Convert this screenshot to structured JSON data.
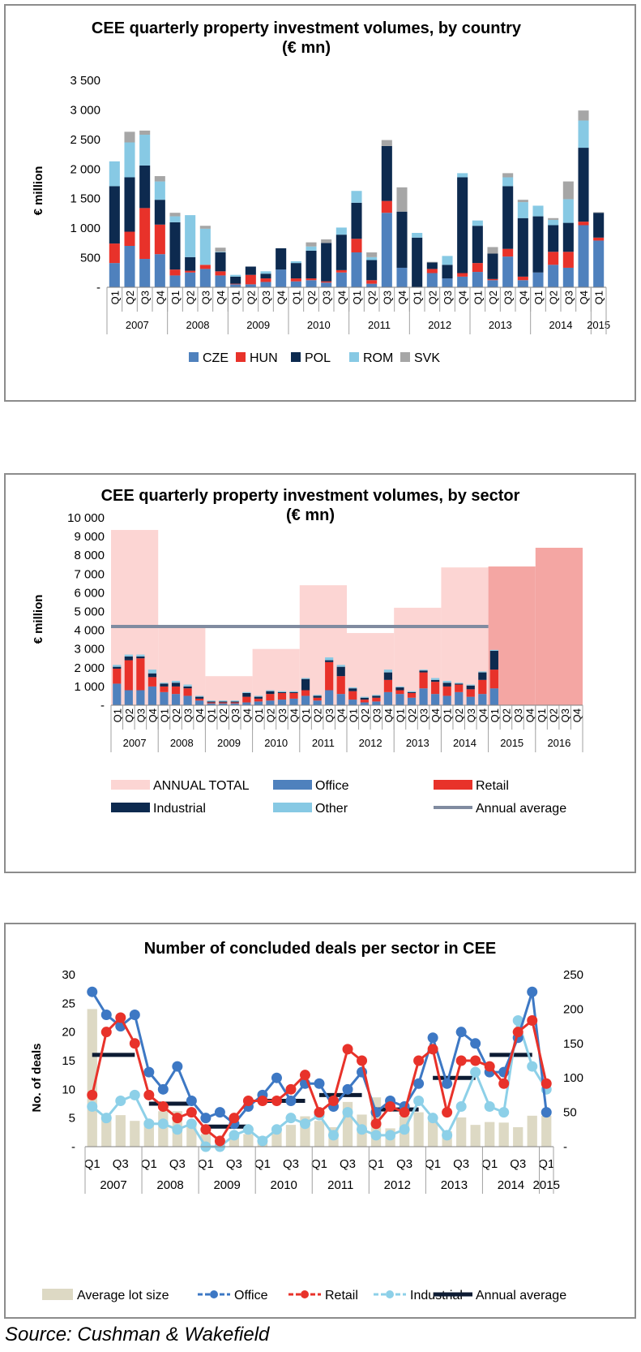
{
  "chart_data": [
    {
      "type": "bar",
      "stacked": true,
      "title": "CEE quarterly property investment volumes, by country",
      "subtitle": "(€ mn)",
      "ylabel": "€ million",
      "ylim": [
        0,
        3500
      ],
      "yticks": [
        "-",
        "500",
        "1 000",
        "1 500",
        "2 000",
        "2 500",
        "3 000",
        "3 500"
      ],
      "quarter_labels": [
        "Q1",
        "Q2",
        "Q3",
        "Q4",
        "Q1",
        "Q2",
        "Q3",
        "Q4",
        "Q1",
        "Q2",
        "Q3",
        "Q4",
        "Q1",
        "Q2",
        "Q3",
        "Q4",
        "Q1",
        "Q2",
        "Q3",
        "Q4",
        "Q1",
        "Q2",
        "Q3",
        "Q4",
        "Q1",
        "Q2",
        "Q3",
        "Q4",
        "Q1",
        "Q2",
        "Q3",
        "Q4",
        "Q1"
      ],
      "years": [
        "2007",
        "2008",
        "2009",
        "2010",
        "2011",
        "2012",
        "2013",
        "2014",
        "2015"
      ],
      "legend_position": "bottom",
      "series": [
        {
          "name": "CZE",
          "color": "#4f81bd",
          "values": [
            410,
            700,
            480,
            560,
            200,
            250,
            310,
            200,
            50,
            50,
            90,
            300,
            100,
            120,
            80,
            250,
            590,
            60,
            1260,
            330,
            0,
            240,
            150,
            180,
            260,
            120,
            520,
            120,
            250,
            380,
            330,
            1050,
            790
          ]
        },
        {
          "name": "HUN",
          "color": "#e8322a",
          "values": [
            330,
            240,
            860,
            500,
            100,
            30,
            70,
            70,
            10,
            160,
            60,
            0,
            50,
            30,
            20,
            40,
            230,
            60,
            200,
            0,
            0,
            70,
            0,
            60,
            150,
            20,
            130,
            60,
            0,
            220,
            270,
            60,
            50
          ]
        },
        {
          "name": "POL",
          "color": "#0d2a4f",
          "values": [
            970,
            920,
            720,
            420,
            800,
            230,
            0,
            320,
            120,
            140,
            80,
            360,
            260,
            470,
            650,
            600,
            610,
            340,
            930,
            950,
            840,
            110,
            230,
            1620,
            630,
            430,
            1060,
            990,
            950,
            450,
            490,
            1250,
            420
          ]
        },
        {
          "name": "ROM",
          "color": "#87c9e4",
          "values": [
            420,
            590,
            520,
            310,
            100,
            710,
            610,
            10,
            30,
            0,
            40,
            0,
            30,
            70,
            0,
            120,
            200,
            50,
            0,
            0,
            80,
            0,
            150,
            70,
            90,
            0,
            150,
            270,
            180,
            90,
            400,
            460,
            0
          ]
        },
        {
          "name": "SVK",
          "color": "#a6a6a6",
          "values": [
            0,
            180,
            70,
            90,
            60,
            0,
            50,
            70,
            0,
            0,
            0,
            0,
            0,
            70,
            60,
            0,
            0,
            80,
            100,
            410,
            0,
            10,
            0,
            0,
            0,
            110,
            70,
            40,
            0,
            30,
            300,
            170,
            10
          ]
        }
      ]
    },
    {
      "type": "bar",
      "stacked": true,
      "title": "CEE quarterly property investment volumes, by sector",
      "subtitle": "(€ mn)",
      "ylabel": "€ million",
      "ylim": [
        0,
        10000
      ],
      "yticks": [
        "-",
        "1 000",
        "2 000",
        "3 000",
        "4 000",
        "5 000",
        "6 000",
        "7 000",
        "8 000",
        "9 000",
        "10 000"
      ],
      "quarter_labels": [
        "Q1",
        "Q2",
        "Q3",
        "Q4",
        "Q1",
        "Q2",
        "Q3",
        "Q4",
        "Q1",
        "Q2",
        "Q3",
        "Q4",
        "Q1",
        "Q2",
        "Q3",
        "Q4",
        "Q1",
        "Q2",
        "Q3",
        "Q4",
        "Q1",
        "Q2",
        "Q3",
        "Q4",
        "Q1",
        "Q2",
        "Q3",
        "Q4",
        "Q1",
        "Q2",
        "Q3",
        "Q4",
        "Q1",
        "Q2",
        "Q3",
        "Q4",
        "Q1",
        "Q2",
        "Q3",
        "Q4"
      ],
      "years": [
        "2007",
        "2008",
        "2009",
        "2010",
        "2011",
        "2012",
        "2013",
        "2014",
        "2015",
        "2016"
      ],
      "annual_total": {
        "name": "ANNUAL TOTAL",
        "color": "#fcd5d3",
        "forecast_color": "#f4a6a3",
        "values": [
          9350,
          4200,
          1550,
          3000,
          6400,
          3850,
          5200,
          7350,
          7400,
          8400
        ],
        "forecast_from_year_index": 8
      },
      "annual_average": {
        "name": "Annual average",
        "color": "#808ba0",
        "value": 4200
      },
      "legend_position": "bottom",
      "series": [
        {
          "name": "Office",
          "color": "#4f81bd",
          "values": [
            1150,
            800,
            800,
            1000,
            700,
            600,
            500,
            250,
            100,
            100,
            100,
            150,
            200,
            250,
            300,
            350,
            500,
            250,
            800,
            600,
            300,
            150,
            200,
            700,
            600,
            400,
            900,
            600,
            500,
            700,
            450,
            600,
            900,
            0,
            0,
            0,
            0,
            0,
            0,
            0
          ]
        },
        {
          "name": "Retail",
          "color": "#e8322a",
          "values": [
            800,
            1600,
            1700,
            500,
            300,
            400,
            400,
            100,
            50,
            50,
            50,
            300,
            150,
            350,
            350,
            300,
            300,
            150,
            1500,
            950,
            450,
            150,
            200,
            650,
            200,
            250,
            850,
            650,
            500,
            400,
            400,
            750,
            1000,
            0,
            0,
            0,
            0,
            0,
            0,
            0
          ]
        },
        {
          "name": "Industrial",
          "color": "#0d2a4f",
          "values": [
            100,
            200,
            100,
            200,
            150,
            200,
            100,
            100,
            50,
            50,
            50,
            200,
            100,
            150,
            50,
            50,
            600,
            100,
            100,
            500,
            150,
            100,
            100,
            400,
            150,
            50,
            100,
            100,
            200,
            50,
            200,
            400,
            1000,
            0,
            0,
            0,
            0,
            0,
            0,
            0
          ]
        },
        {
          "name": "Other",
          "color": "#87c9e4",
          "values": [
            100,
            100,
            100,
            200,
            50,
            100,
            100,
            50,
            50,
            50,
            50,
            50,
            50,
            50,
            50,
            50,
            50,
            50,
            150,
            100,
            50,
            50,
            50,
            150,
            50,
            50,
            50,
            100,
            100,
            50,
            50,
            50,
            50,
            0,
            0,
            0,
            0,
            0,
            0,
            0
          ]
        }
      ]
    },
    {
      "type": "line",
      "title": "Number of concluded deals per sector in CEE",
      "ylabel": "No. of deals",
      "ylim": [
        0,
        30
      ],
      "y2lim": [
        0,
        250
      ],
      "yticks": [
        "-",
        "5",
        "10",
        "15",
        "20",
        "25",
        "30"
      ],
      "y2ticks": [
        "-",
        "50",
        "100",
        "150",
        "200",
        "250"
      ],
      "quarter_labels": [
        "Q1",
        "",
        "Q3",
        "",
        "Q1",
        "",
        "Q3",
        "",
        "Q1",
        "",
        "Q3",
        "",
        "Q1",
        "",
        "Q3",
        "",
        "Q1",
        "",
        "Q3",
        "",
        "Q1",
        "",
        "Q3",
        "",
        "Q1",
        "",
        "Q3",
        "",
        "Q1",
        "",
        "Q3",
        "",
        "Q1"
      ],
      "years": [
        "2007",
        "2008",
        "2009",
        "2010",
        "2011",
        "2012",
        "2013",
        "2014",
        "2015"
      ],
      "legend_position": "bottom",
      "bars": {
        "name": "Average lot size",
        "color": "#ddd9c4",
        "values": [
          24,
          5.5,
          5.5,
          4.5,
          4.5,
          6.2,
          6.2,
          3.6,
          2.2,
          1.2,
          1.6,
          2.2,
          1.8,
          3.4,
          3.8,
          5.3,
          4.5,
          3.4,
          7.8,
          5.6,
          8.6,
          3.2,
          5.4,
          6,
          4.5,
          2.7,
          5.1,
          3.8,
          4.3,
          4.2,
          3.4,
          5.4,
          5.4
        ]
      },
      "series": [
        {
          "name": "Office",
          "color": "#3d78c4",
          "values": [
            27,
            23,
            21,
            23,
            13,
            10,
            14,
            8,
            5,
            6,
            4,
            7,
            9,
            12,
            8,
            11,
            11,
            7,
            10,
            13,
            6,
            8,
            7,
            11,
            19,
            11,
            20,
            18,
            13,
            13,
            19,
            27,
            6
          ]
        },
        {
          "name": "Retail",
          "color": "#e8322a",
          "values": [
            9,
            20,
            22.5,
            18,
            9,
            7,
            5,
            6,
            3,
            1,
            5,
            8,
            8,
            8,
            10,
            12.5,
            6,
            8,
            17,
            15,
            4,
            7,
            6,
            15,
            17,
            6,
            15,
            15,
            14,
            11,
            20,
            22,
            11
          ]
        },
        {
          "name": "Industrial",
          "color": "#8dd0e8",
          "values": [
            7,
            5,
            8,
            9,
            4,
            4,
            3,
            4,
            0,
            0,
            2,
            3,
            1,
            3,
            5,
            4,
            5.5,
            2,
            6,
            3,
            2,
            2,
            3,
            8,
            5,
            2,
            7,
            13,
            7,
            6,
            22,
            14,
            10
          ]
        }
      ],
      "annual_average": {
        "name": "Annual average",
        "color": "#0d1b33",
        "values": [
          16,
          7.5,
          3.5,
          8,
          9,
          6.5,
          12,
          16
        ]
      }
    }
  ],
  "source": "Source: Cushman & Wakefield"
}
